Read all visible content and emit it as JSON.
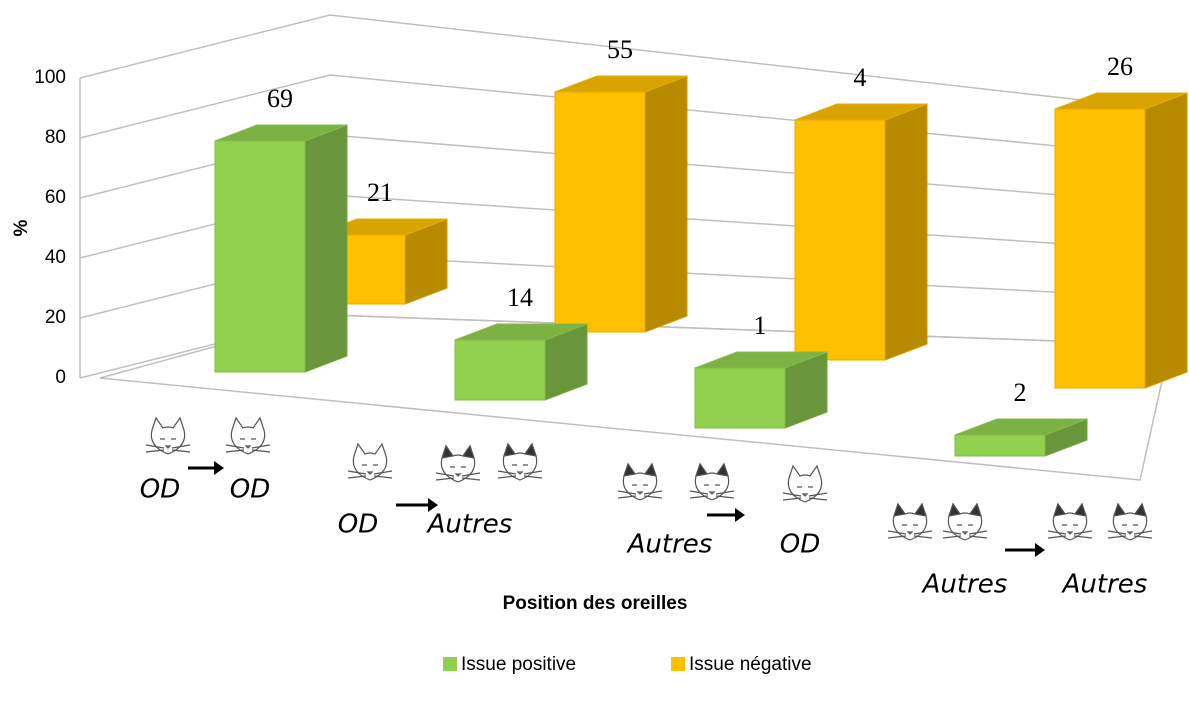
{
  "chart_data": {
    "type": "bar3d",
    "y_label": "%",
    "x_label": "Position des oreilles",
    "categories": [
      {
        "from": "OD",
        "to": "OD"
      },
      {
        "from": "OD",
        "to": "Autres"
      },
      {
        "from": "Autres",
        "to": "OD"
      },
      {
        "from": "Autres",
        "to": "Autres"
      }
    ],
    "series": [
      {
        "name": "Issue positive",
        "color": "#92d050",
        "values": [
          77,
          20,
          20,
          7
        ],
        "counts": [
          69,
          14,
          1,
          2
        ]
      },
      {
        "name": "Issue négative",
        "color": "#ffc000",
        "values": [
          23,
          80,
          80,
          93
        ],
        "counts": [
          21,
          55,
          4,
          26
        ]
      }
    ],
    "ylim": [
      0,
      100
    ],
    "yticks": [
      0,
      20,
      40,
      60,
      80,
      100
    ],
    "grid": true,
    "legend": "bottom"
  }
}
